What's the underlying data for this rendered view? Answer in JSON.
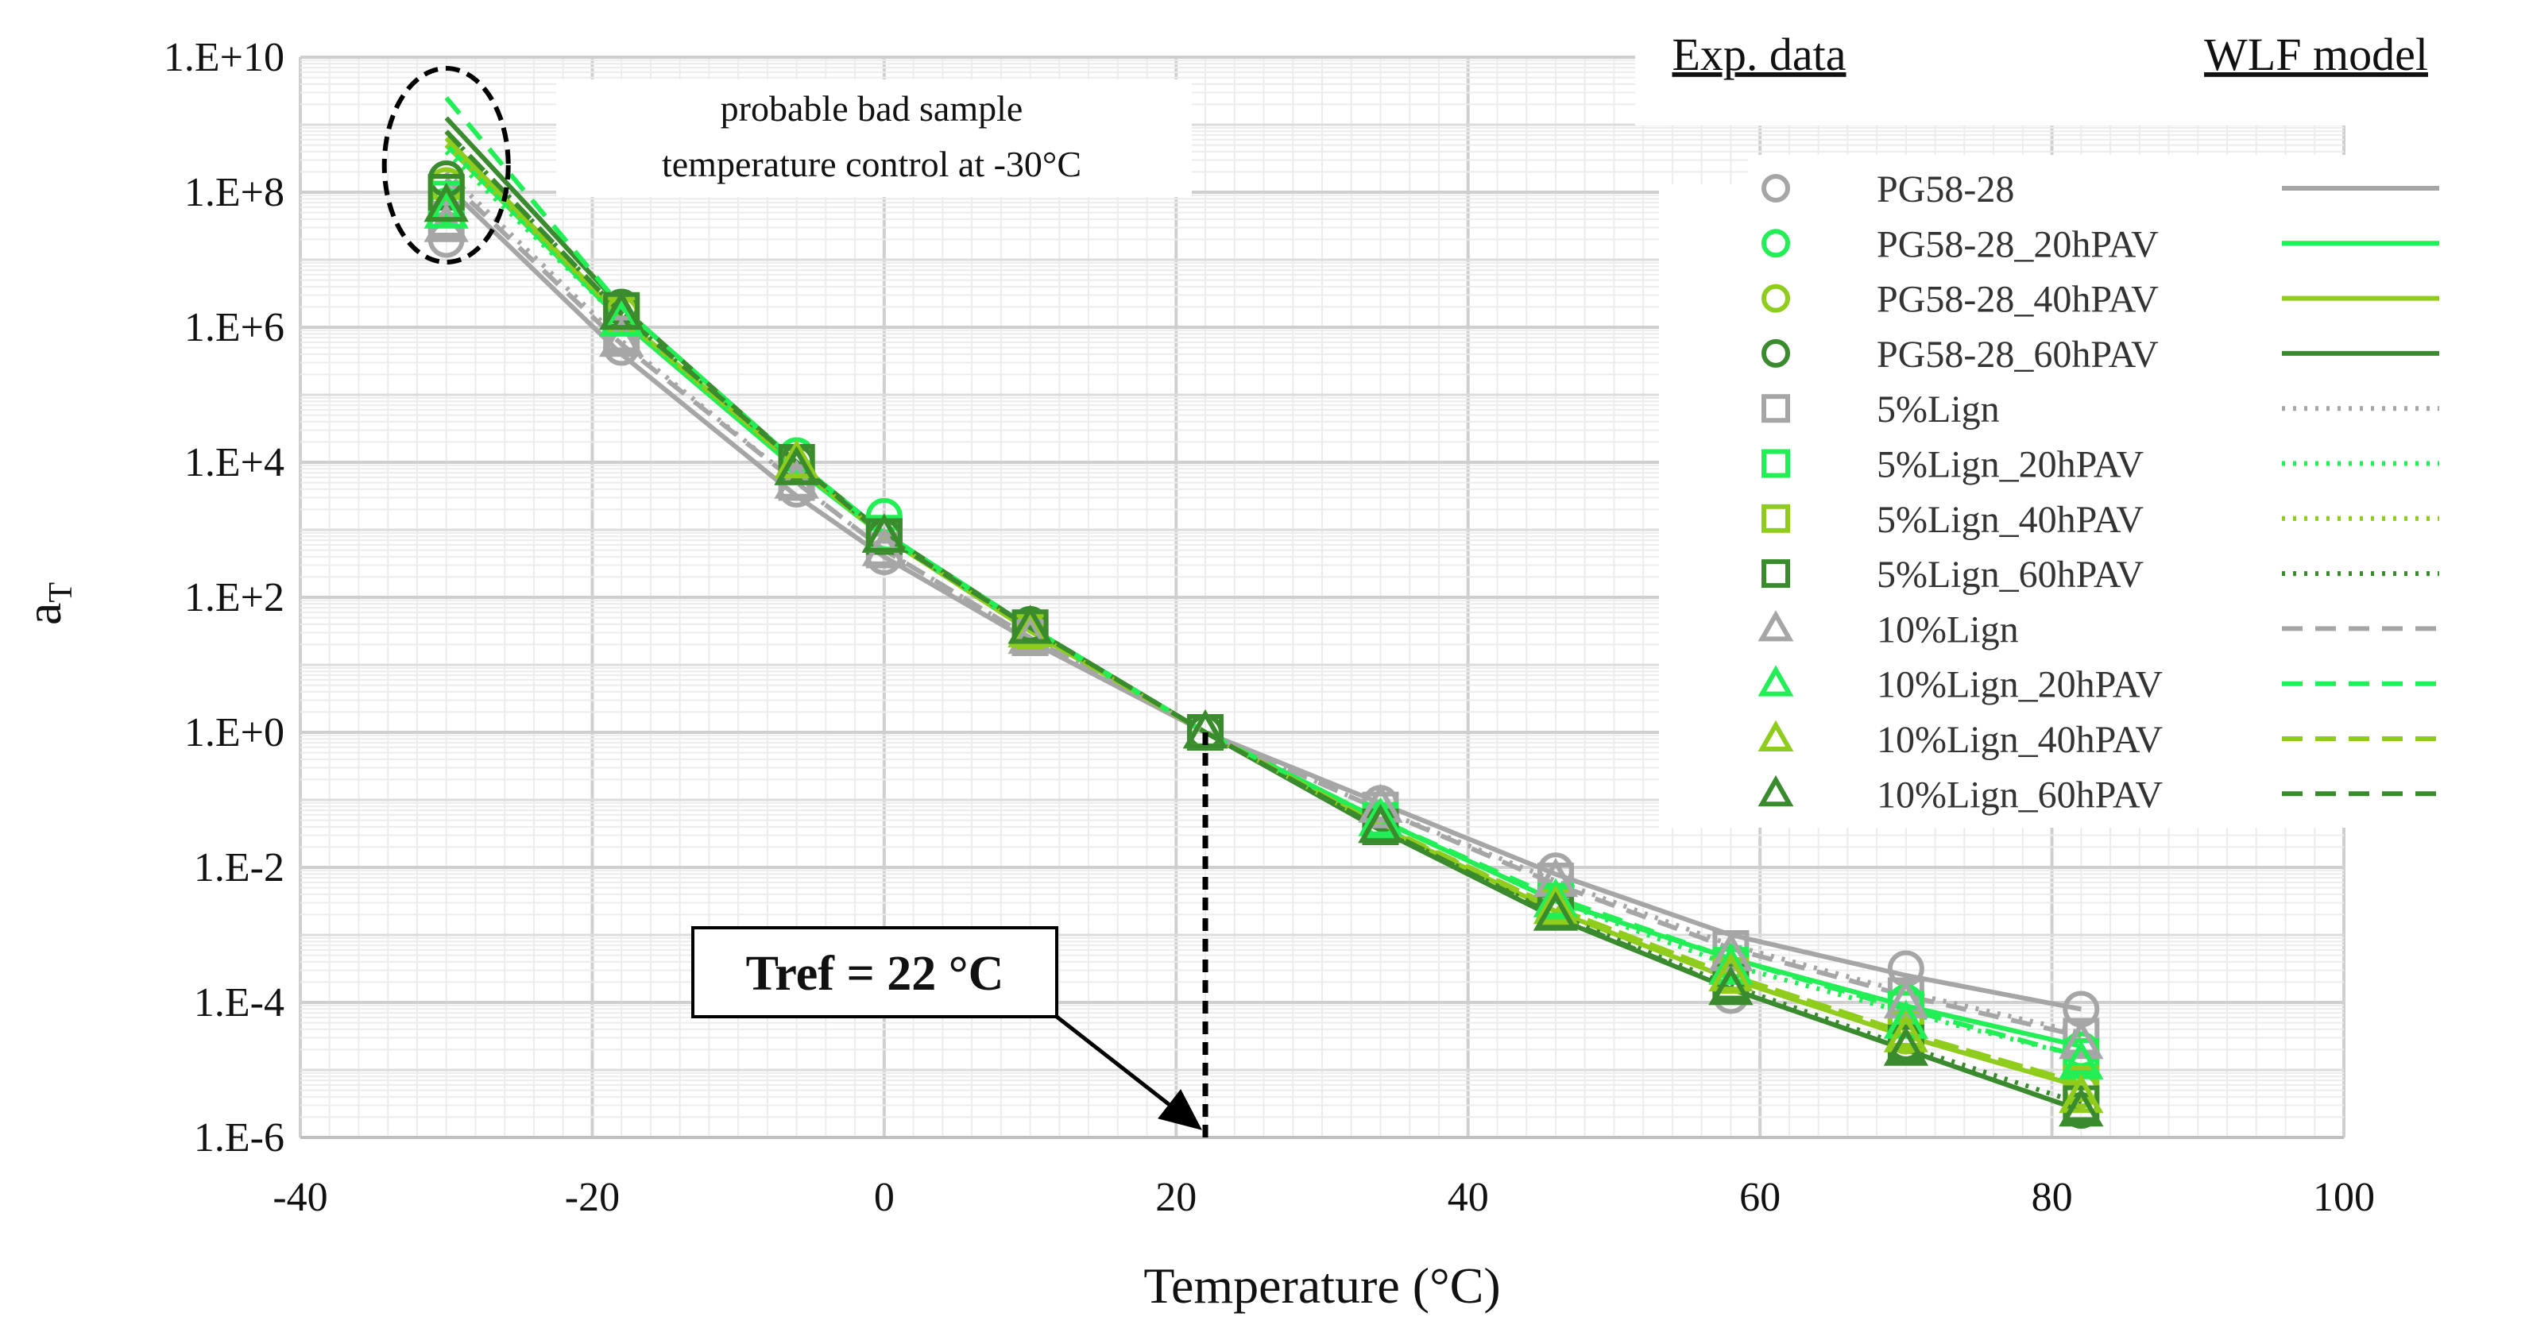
{
  "chart_data": {
    "type": "line",
    "xlabel": "Temperature (°C)",
    "ylabel": "a",
    "ylabel_sub": "T",
    "xlim": [
      -40,
      100
    ],
    "xticks": [
      -40,
      -20,
      0,
      20,
      40,
      60,
      80,
      100
    ],
    "ylim_log10": [
      -6,
      10
    ],
    "yticks": [
      {
        "exp": 10,
        "label": "1.E+10"
      },
      {
        "exp": 8,
        "label": "1.E+8"
      },
      {
        "exp": 6,
        "label": "1.E+6"
      },
      {
        "exp": 4,
        "label": "1.E+4"
      },
      {
        "exp": 2,
        "label": "1.E+2"
      },
      {
        "exp": 0,
        "label": "1.E+0"
      },
      {
        "exp": -2,
        "label": "1.E-2"
      },
      {
        "exp": -4,
        "label": "1.E-4"
      },
      {
        "exp": -6,
        "label": "1.E-6"
      }
    ],
    "x": [
      -30,
      -18,
      -6,
      0,
      10,
      22,
      34,
      46,
      58,
      70,
      82
    ],
    "legend_headers": {
      "exp": "Exp. data",
      "model": "WLF model"
    },
    "colors": {
      "unaged": "#a6a6a6",
      "h20": "#22ee55",
      "h40": "#8fcc1c",
      "h60": "#3a8a2e"
    },
    "series": [
      {
        "name": "PG58-28",
        "marker": "circle",
        "line": "solid",
        "color": "#a6a6a6",
        "exp_log10": [
          7.3,
          5.7,
          3.6,
          2.6,
          1.4,
          0,
          -1.05,
          -2.05,
          -3.9,
          -3.5,
          -4.1
        ],
        "model_log10": [
          8.1,
          5.6,
          3.5,
          2.6,
          1.35,
          0,
          -1.05,
          -2.1,
          -3.0,
          -3.6,
          -4.1
        ]
      },
      {
        "name": "PG58-28_20hPAV",
        "marker": "circle",
        "line": "solid",
        "color": "#22ee55",
        "exp_log10": [
          7.8,
          6.3,
          4.1,
          3.2,
          1.6,
          0,
          -1.3,
          -2.5,
          -3.4,
          -4.0,
          -4.7
        ],
        "model_log10": [
          8.7,
          6.1,
          3.9,
          2.9,
          1.5,
          0,
          -1.3,
          -2.5,
          -3.35,
          -4.05,
          -4.65
        ]
      },
      {
        "name": "PG58-28_40hPAV",
        "marker": "circle",
        "line": "solid",
        "color": "#8fcc1c",
        "exp_log10": [
          8.1,
          6.2,
          4.0,
          2.9,
          1.5,
          0,
          -1.4,
          -2.6,
          -3.6,
          -4.5,
          -5.3
        ],
        "model_log10": [
          8.8,
          6.15,
          3.95,
          2.9,
          1.5,
          0,
          -1.4,
          -2.65,
          -3.65,
          -4.5,
          -5.25
        ]
      },
      {
        "name": "PG58-28_60hPAV",
        "marker": "circle",
        "line": "solid",
        "color": "#3a8a2e",
        "exp_log10": [
          8.2,
          6.3,
          4.0,
          2.9,
          1.6,
          0,
          -1.4,
          -2.6,
          -3.6,
          -4.6,
          -5.6
        ],
        "model_log10": [
          9.1,
          6.3,
          4.0,
          2.95,
          1.55,
          0,
          -1.45,
          -2.75,
          -3.8,
          -4.7,
          -5.6
        ]
      },
      {
        "name": "5%Lign",
        "marker": "square",
        "line": "dotted",
        "color": "#a6a6a6",
        "exp_log10": [
          7.6,
          5.9,
          3.7,
          2.7,
          1.4,
          0,
          -1.15,
          -2.2,
          -3.2,
          -3.9,
          -4.5
        ],
        "model_log10": [
          8.3,
          5.8,
          3.7,
          2.7,
          1.4,
          0,
          -1.15,
          -2.2,
          -3.15,
          -3.85,
          -4.45
        ]
      },
      {
        "name": "5%Lign_20hPAV",
        "marker": "square",
        "line": "dotted",
        "color": "#22ee55",
        "exp_log10": [
          7.9,
          6.2,
          4.0,
          2.95,
          1.55,
          0,
          -1.3,
          -2.5,
          -3.45,
          -4.1,
          -4.8
        ],
        "model_log10": [
          8.6,
          6.1,
          3.95,
          2.9,
          1.5,
          0,
          -1.3,
          -2.5,
          -3.45,
          -4.15,
          -4.8
        ]
      },
      {
        "name": "5%Lign_40hPAV",
        "marker": "square",
        "line": "dotted",
        "color": "#8fcc1c",
        "exp_log10": [
          8.0,
          6.2,
          4.0,
          2.9,
          1.5,
          0,
          -1.4,
          -2.6,
          -3.6,
          -4.4,
          -5.2
        ],
        "model_log10": [
          8.7,
          6.15,
          3.95,
          2.9,
          1.5,
          0,
          -1.4,
          -2.6,
          -3.6,
          -4.45,
          -5.2
        ]
      },
      {
        "name": "5%Lign_60hPAV",
        "marker": "square",
        "line": "dotted",
        "color": "#3a8a2e",
        "exp_log10": [
          8.0,
          6.25,
          4.0,
          2.9,
          1.55,
          0,
          -1.4,
          -2.65,
          -3.7,
          -4.6,
          -5.5
        ],
        "model_log10": [
          8.9,
          6.2,
          4.0,
          2.9,
          1.55,
          0,
          -1.42,
          -2.7,
          -3.75,
          -4.65,
          -5.5
        ]
      },
      {
        "name": "10%Lign",
        "marker": "triangle",
        "line": "dashed",
        "color": "#a6a6a6",
        "exp_log10": [
          7.5,
          5.8,
          3.7,
          2.7,
          1.4,
          0,
          -1.1,
          -2.2,
          -3.3,
          -4.0,
          -4.6
        ],
        "model_log10": [
          8.2,
          5.75,
          3.7,
          2.7,
          1.4,
          0,
          -1.15,
          -2.25,
          -3.2,
          -3.9,
          -4.5
        ]
      },
      {
        "name": "10%Lign_20hPAV",
        "marker": "triangle",
        "line": "dashed",
        "color": "#22ee55",
        "exp_log10": [
          7.7,
          6.1,
          3.9,
          2.9,
          1.5,
          0,
          -1.3,
          -2.5,
          -3.5,
          -4.3,
          -4.9
        ],
        "model_log10": [
          9.4,
          6.3,
          4.0,
          2.95,
          1.55,
          0,
          -1.3,
          -2.45,
          -3.35,
          -4.1,
          -4.8
        ]
      },
      {
        "name": "10%Lign_40hPAV",
        "marker": "triangle",
        "line": "dashed",
        "color": "#8fcc1c",
        "exp_log10": [
          7.8,
          6.2,
          4.0,
          2.9,
          1.5,
          0,
          -1.4,
          -2.6,
          -3.6,
          -4.5,
          -5.4
        ],
        "model_log10": [
          8.9,
          6.2,
          3.95,
          2.9,
          1.5,
          0,
          -1.38,
          -2.6,
          -3.6,
          -4.45,
          -5.2
        ]
      },
      {
        "name": "10%Lign_60hPAV",
        "marker": "triangle",
        "line": "dashed",
        "color": "#3a8a2e",
        "exp_log10": [
          7.8,
          6.2,
          3.9,
          2.9,
          1.55,
          0,
          -1.4,
          -2.7,
          -3.8,
          -4.7,
          -5.6
        ],
        "model_log10": [
          8.9,
          6.2,
          4.0,
          2.9,
          1.55,
          0,
          -1.42,
          -2.72,
          -3.8,
          -4.7,
          -5.6
        ]
      }
    ],
    "annotations": {
      "bad_sample_line1": "probable bad sample",
      "bad_sample_line2": "temperature control at -30°C",
      "tref_label": "Tref = 22 °C",
      "tref_value": 22,
      "bad_sample_temp": -30
    }
  }
}
